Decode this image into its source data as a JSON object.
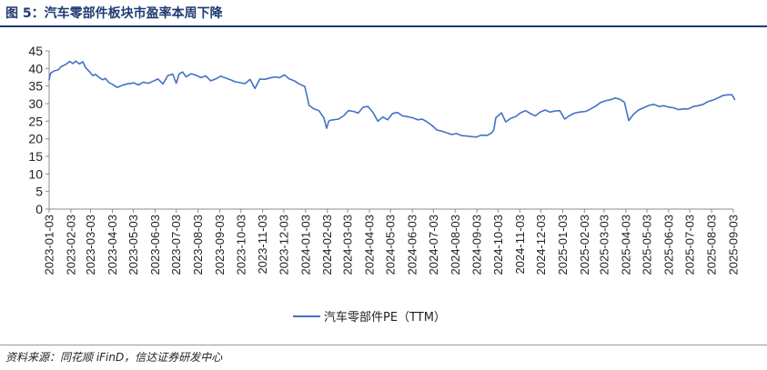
{
  "header": {
    "title": "图 5：汽车零部件板块市盈率本周下降"
  },
  "footer": {
    "source": "资料来源：同花顺 iFinD，信达证券研发中心"
  },
  "colors": {
    "series": "#4472c4",
    "title": "#1f3b73",
    "axis": "#8c8c8c"
  },
  "chart_data": {
    "type": "line",
    "title": "图 5：汽车零部件板块市盈率本周下降",
    "xlabel": "",
    "ylabel": "",
    "ylim": [
      0,
      45
    ],
    "yticks": [
      0,
      5,
      10,
      15,
      20,
      25,
      30,
      35,
      40,
      45
    ],
    "xtick_labels": [
      "2023-01-03",
      "2023-02-03",
      "2023-03-03",
      "2023-04-03",
      "2023-05-03",
      "2023-06-03",
      "2023-07-03",
      "2023-08-03",
      "2023-09-03",
      "2023-10-03",
      "2023-11-03",
      "2023-12-03",
      "2024-01-03",
      "2024-02-03",
      "2024-03-03",
      "2024-04-03",
      "2024-05-03",
      "2024-06-03",
      "2024-07-03",
      "2024-08-03",
      "2024-09-03",
      "2024-10-03",
      "2024-11-03",
      "2024-12-03",
      "2025-01-03",
      "2025-02-03",
      "2025-03-03",
      "2025-04-03",
      "2025-05-03",
      "2025-06-03",
      "2025-07-03",
      "2025-08-03",
      "2025-09-03"
    ],
    "grid": false,
    "legend": "bottom-center",
    "series": [
      {
        "name": "汽车零部件PE（TTM）",
        "x": [
          "2023-01-03",
          "2023-01-05",
          "2023-01-10",
          "2023-01-16",
          "2023-01-20",
          "2023-01-27",
          "2023-02-01",
          "2023-02-06",
          "2023-02-10",
          "2023-02-15",
          "2023-02-20",
          "2023-02-24",
          "2023-03-01",
          "2023-03-06",
          "2023-03-10",
          "2023-03-15",
          "2023-03-20",
          "2023-03-24",
          "2023-03-29",
          "2023-04-03",
          "2023-04-10",
          "2023-04-17",
          "2023-04-24",
          "2023-05-04",
          "2023-05-10",
          "2023-05-17",
          "2023-05-24",
          "2023-05-31",
          "2023-06-07",
          "2023-06-14",
          "2023-06-21",
          "2023-06-28",
          "2023-07-03",
          "2023-07-07",
          "2023-07-12",
          "2023-07-17",
          "2023-07-24",
          "2023-07-31",
          "2023-08-07",
          "2023-08-14",
          "2023-08-21",
          "2023-08-28",
          "2023-09-04",
          "2023-09-11",
          "2023-09-18",
          "2023-09-25",
          "2023-10-09",
          "2023-10-16",
          "2023-10-23",
          "2023-10-30",
          "2023-11-06",
          "2023-11-13",
          "2023-11-20",
          "2023-11-27",
          "2023-12-04",
          "2023-12-11",
          "2023-12-18",
          "2023-12-25",
          "2024-01-02",
          "2024-01-08",
          "2024-01-15",
          "2024-01-22",
          "2024-01-29",
          "2024-02-02",
          "2024-02-05",
          "2024-02-08",
          "2024-02-19",
          "2024-02-26",
          "2024-03-04",
          "2024-03-11",
          "2024-03-18",
          "2024-03-25",
          "2024-04-01",
          "2024-04-08",
          "2024-04-15",
          "2024-04-22",
          "2024-04-29",
          "2024-05-06",
          "2024-05-13",
          "2024-05-20",
          "2024-05-27",
          "2024-06-03",
          "2024-06-11",
          "2024-06-17",
          "2024-06-24",
          "2024-07-01",
          "2024-07-08",
          "2024-07-15",
          "2024-07-22",
          "2024-07-29",
          "2024-08-05",
          "2024-08-12",
          "2024-08-19",
          "2024-08-26",
          "2024-09-02",
          "2024-09-09",
          "2024-09-18",
          "2024-09-24",
          "2024-09-27",
          "2024-09-30",
          "2024-10-08",
          "2024-10-14",
          "2024-10-21",
          "2024-10-28",
          "2024-11-04",
          "2024-11-11",
          "2024-11-18",
          "2024-11-25",
          "2024-12-02",
          "2024-12-09",
          "2024-12-16",
          "2024-12-23",
          "2024-12-30",
          "2025-01-06",
          "2025-01-13",
          "2025-01-20",
          "2025-01-27",
          "2025-02-05",
          "2025-02-12",
          "2025-02-19",
          "2025-02-26",
          "2025-03-05",
          "2025-03-12",
          "2025-03-19",
          "2025-03-26",
          "2025-04-01",
          "2025-04-07",
          "2025-04-14",
          "2025-04-21",
          "2025-04-28",
          "2025-05-06",
          "2025-05-13",
          "2025-05-20",
          "2025-05-27",
          "2025-06-03",
          "2025-06-10",
          "2025-06-17",
          "2025-06-24",
          "2025-07-01",
          "2025-07-08",
          "2025-07-15",
          "2025-07-22",
          "2025-07-29",
          "2025-08-05",
          "2025-08-12",
          "2025-08-19",
          "2025-08-26",
          "2025-09-01",
          "2025-09-05"
        ],
        "values": [
          36.8,
          38.6,
          39.3,
          39.6,
          40.5,
          41.2,
          42.0,
          41.4,
          42.1,
          41.3,
          41.9,
          40.2,
          39.2,
          38.0,
          38.3,
          37.5,
          36.8,
          37.2,
          36.0,
          35.5,
          34.6,
          35.2,
          35.6,
          35.9,
          35.3,
          36.1,
          35.8,
          36.4,
          37.0,
          35.6,
          38.0,
          38.4,
          35.8,
          38.4,
          39.0,
          37.6,
          38.5,
          38.1,
          37.4,
          37.9,
          36.5,
          37.0,
          37.8,
          37.3,
          36.8,
          36.2,
          35.7,
          36.9,
          34.3,
          37.0,
          36.9,
          37.3,
          37.6,
          37.4,
          38.2,
          37.0,
          36.5,
          35.6,
          34.9,
          29.5,
          28.5,
          28.0,
          26.0,
          23.0,
          25.0,
          25.3,
          25.6,
          26.5,
          28.0,
          27.8,
          27.3,
          29.0,
          29.2,
          27.5,
          25.0,
          26.2,
          25.4,
          27.2,
          27.5,
          26.5,
          26.3,
          26.0,
          25.4,
          25.6,
          24.8,
          23.8,
          22.5,
          22.2,
          21.7,
          21.2,
          21.5,
          20.9,
          20.8,
          20.6,
          20.5,
          21.0,
          21.0,
          21.7,
          22.5,
          26.0,
          27.4,
          24.8,
          25.8,
          26.3,
          27.4,
          28.0,
          27.2,
          26.5,
          27.6,
          28.2,
          27.6,
          27.9,
          28.0,
          25.6,
          26.6,
          27.3,
          27.6,
          27.8,
          28.5,
          29.3,
          30.3,
          30.8,
          31.1,
          31.6,
          31.2,
          30.4,
          25.2,
          27.0,
          28.2,
          28.8,
          29.5,
          29.8,
          29.2,
          29.4,
          29.0,
          28.8,
          28.3,
          28.5,
          28.5,
          29.2,
          29.4,
          29.8,
          30.6,
          31.0,
          31.6,
          32.3,
          32.5,
          32.5,
          31.2
        ]
      }
    ]
  }
}
